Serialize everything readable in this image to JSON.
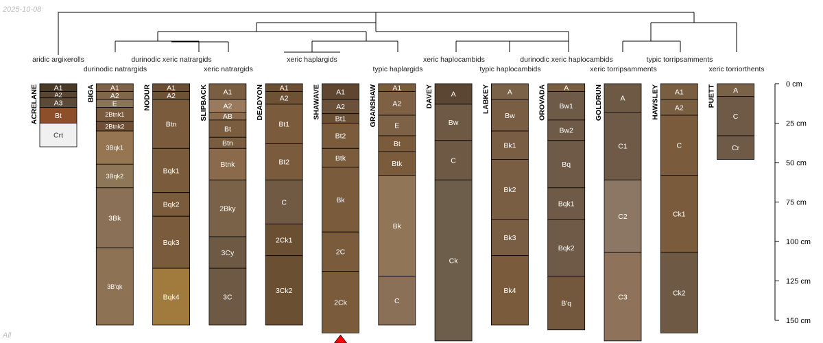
{
  "header": {
    "date": "2025-10-08"
  },
  "footer": {
    "label": "All"
  },
  "colors": {
    "line": "#000000",
    "marker": "#ff0000",
    "light_text": "#ffffff",
    "dark_text": "#333333"
  },
  "chart_data": {
    "type": "soil-profile-sketch",
    "depth_unit": "cm",
    "depth_axis": {
      "ticks": [
        0,
        25,
        50,
        75,
        100,
        125,
        150
      ],
      "labels": [
        "0 cm",
        "25 cm",
        "50 cm",
        "75 cm",
        "100 cm",
        "125 cm",
        "150 cm"
      ],
      "max_depth": 163
    },
    "dendrogram_leaf_labels": [
      "aridic argixerolls",
      "durinodic natrargids",
      "durinodic xeric natrargids",
      "xeric natrargids",
      "xeric haplargids",
      "typic haplargids",
      "xeric haplocambids",
      "typic haplocambids",
      "durinodic xeric haplocambids",
      "xeric torripsamments",
      "typic torripsamments",
      "xeric torriorthents"
    ],
    "profiles": [
      {
        "name": "ACRELANE",
        "horizons": [
          {
            "name": "A1",
            "top": 0,
            "bottom": 5,
            "color": "#4a3a28"
          },
          {
            "name": "A2",
            "top": 5,
            "bottom": 9,
            "color": "#584632"
          },
          {
            "name": "A3",
            "top": 9,
            "bottom": 15,
            "color": "#5c4a36"
          },
          {
            "name": "Bt",
            "top": 15,
            "bottom": 25,
            "color": "#8c4f2a"
          },
          {
            "name": "Crt",
            "top": 25,
            "bottom": 40,
            "color": "#f0f0f0"
          }
        ]
      },
      {
        "name": "BIGA",
        "horizons": [
          {
            "name": "A1",
            "top": 0,
            "bottom": 5,
            "color": "#7d6246"
          },
          {
            "name": "A2",
            "top": 5,
            "bottom": 10,
            "color": "#80664a"
          },
          {
            "name": "E",
            "top": 10,
            "bottom": 15,
            "color": "#8c7458"
          },
          {
            "name": "2Btnk1",
            "top": 15,
            "bottom": 24,
            "color": "#7a5b3e"
          },
          {
            "name": "2Btnk2",
            "top": 24,
            "bottom": 30,
            "color": "#6f5036"
          },
          {
            "name": "3Bqk1",
            "top": 30,
            "bottom": 51,
            "color": "#957552"
          },
          {
            "name": "3Bqk2",
            "top": 51,
            "bottom": 66,
            "color": "#8e7658"
          },
          {
            "name": "3Bk",
            "top": 66,
            "bottom": 104,
            "color": "#8a7056"
          },
          {
            "name": "3B'qk",
            "top": 104,
            "bottom": 153,
            "color": "#8d7254"
          }
        ]
      },
      {
        "name": "NODUR",
        "horizons": [
          {
            "name": "A1",
            "top": 0,
            "bottom": 5,
            "color": "#6b4f33"
          },
          {
            "name": "A2",
            "top": 5,
            "bottom": 10,
            "color": "#6e5236"
          },
          {
            "name": "Btn",
            "top": 10,
            "bottom": 41,
            "color": "#7a5c3c"
          },
          {
            "name": "Bqk1",
            "top": 41,
            "bottom": 69,
            "color": "#7a5c3c"
          },
          {
            "name": "Bqk2",
            "top": 69,
            "bottom": 84,
            "color": "#7a5c3c"
          },
          {
            "name": "Bqk3",
            "top": 84,
            "bottom": 117,
            "color": "#7a5c3c"
          },
          {
            "name": "Bqk4",
            "top": 117,
            "bottom": 153,
            "color": "#a17a3e"
          }
        ]
      },
      {
        "name": "SLIPBACK",
        "horizons": [
          {
            "name": "A1",
            "top": 0,
            "bottom": 10,
            "color": "#7a5e42"
          },
          {
            "name": "A2",
            "top": 10,
            "bottom": 18,
            "color": "#9a7a5c"
          },
          {
            "name": "AB",
            "top": 18,
            "bottom": 23,
            "color": "#8a6c50"
          },
          {
            "name": "Bt",
            "top": 23,
            "bottom": 34,
            "color": "#7a5c3e"
          },
          {
            "name": "Btn",
            "top": 34,
            "bottom": 41,
            "color": "#7a5c3e"
          },
          {
            "name": "Btnk",
            "top": 41,
            "bottom": 61,
            "color": "#8a6a4a"
          },
          {
            "name": "2Bky",
            "top": 61,
            "bottom": 97,
            "color": "#7a6248"
          },
          {
            "name": "3Cy",
            "top": 97,
            "bottom": 117,
            "color": "#6e5a44"
          },
          {
            "name": "3C",
            "top": 117,
            "bottom": 153,
            "color": "#6e5a44"
          }
        ]
      },
      {
        "name": "DEADYON",
        "horizons": [
          {
            "name": "A1",
            "top": 0,
            "bottom": 5,
            "color": "#6b4f33"
          },
          {
            "name": "A2",
            "top": 5,
            "bottom": 13,
            "color": "#6e5236"
          },
          {
            "name": "Bt1",
            "top": 13,
            "bottom": 38,
            "color": "#7a5c3c"
          },
          {
            "name": "Bt2",
            "top": 38,
            "bottom": 61,
            "color": "#7a5c3c"
          },
          {
            "name": "C",
            "top": 61,
            "bottom": 89,
            "color": "#705a44"
          },
          {
            "name": "2Ck1",
            "top": 89,
            "bottom": 109,
            "color": "#6b4f33"
          },
          {
            "name": "3Ck2",
            "top": 109,
            "bottom": 153,
            "color": "#6b4f33"
          }
        ]
      },
      {
        "name": "SHAWAVE",
        "horizons": [
          {
            "name": "A1",
            "top": 0,
            "bottom": 10,
            "color": "#5e4630"
          },
          {
            "name": "A2",
            "top": 10,
            "bottom": 19,
            "color": "#6b513a"
          },
          {
            "name": "Bt1",
            "top": 19,
            "bottom": 25,
            "color": "#6b4f33"
          },
          {
            "name": "Bt2",
            "top": 25,
            "bottom": 41,
            "color": "#7a5c3c"
          },
          {
            "name": "Btk",
            "top": 41,
            "bottom": 53,
            "color": "#7a5c3c"
          },
          {
            "name": "Bk",
            "top": 53,
            "bottom": 94,
            "color": "#7a5c3c"
          },
          {
            "name": "2C",
            "top": 94,
            "bottom": 119,
            "color": "#7a5c3c"
          },
          {
            "name": "2Ck",
            "top": 119,
            "bottom": 158,
            "color": "#7a5c3c"
          }
        ]
      },
      {
        "name": "GRANSHAW",
        "horizons": [
          {
            "name": "A1",
            "top": 0,
            "bottom": 5,
            "color": "#7a5c3c"
          },
          {
            "name": "A2",
            "top": 5,
            "bottom": 20,
            "color": "#7e6144"
          },
          {
            "name": "E",
            "top": 20,
            "bottom": 33,
            "color": "#7d6246"
          },
          {
            "name": "Bt",
            "top": 33,
            "bottom": 43,
            "color": "#7a5c3c"
          },
          {
            "name": "Btk",
            "top": 43,
            "bottom": 58,
            "color": "#7a5c3c"
          },
          {
            "name": "Bk",
            "top": 58,
            "bottom": 122,
            "color": "#907656"
          },
          {
            "name": "C",
            "top": 122,
            "bottom": 153,
            "color": "#8a7056"
          }
        ]
      },
      {
        "name": "DAVEY",
        "horizons": [
          {
            "name": "A",
            "top": 0,
            "bottom": 13,
            "color": "#5a4632"
          },
          {
            "name": "Bw",
            "top": 13,
            "bottom": 36,
            "color": "#6e5a44"
          },
          {
            "name": "C",
            "top": 36,
            "bottom": 61,
            "color": "#6e5a44"
          },
          {
            "name": "Ck",
            "top": 61,
            "bottom": 163,
            "color": "#6c5e4a"
          }
        ]
      },
      {
        "name": "LABKEY",
        "horizons": [
          {
            "name": "A",
            "top": 0,
            "bottom": 10,
            "color": "#7a6248"
          },
          {
            "name": "Bw",
            "top": 10,
            "bottom": 30,
            "color": "#7a5e44"
          },
          {
            "name": "Bk1",
            "top": 30,
            "bottom": 48,
            "color": "#7a5e44"
          },
          {
            "name": "Bk2",
            "top": 48,
            "bottom": 86,
            "color": "#7a5e44"
          },
          {
            "name": "Bk3",
            "top": 86,
            "bottom": 109,
            "color": "#7a5e44"
          },
          {
            "name": "Bk4",
            "top": 109,
            "bottom": 153,
            "color": "#7a5c3c"
          }
        ]
      },
      {
        "name": "OROVADA",
        "horizons": [
          {
            "name": "A",
            "top": 0,
            "bottom": 5,
            "color": "#7a5e42"
          },
          {
            "name": "Bw1",
            "top": 5,
            "bottom": 23,
            "color": "#6e5a46"
          },
          {
            "name": "Bw2",
            "top": 23,
            "bottom": 36,
            "color": "#6e5a46"
          },
          {
            "name": "Bq",
            "top": 36,
            "bottom": 66,
            "color": "#6e5a46"
          },
          {
            "name": "Bqk1",
            "top": 66,
            "bottom": 86,
            "color": "#6e5a46"
          },
          {
            "name": "Bqk2",
            "top": 86,
            "bottom": 122,
            "color": "#6e5a46"
          },
          {
            "name": "B'q",
            "top": 122,
            "bottom": 156,
            "color": "#74583e"
          }
        ]
      },
      {
        "name": "GOLDRUN",
        "horizons": [
          {
            "name": "A",
            "top": 0,
            "bottom": 18,
            "color": "#6e5a44"
          },
          {
            "name": "C1",
            "top": 18,
            "bottom": 61,
            "color": "#6e5a46"
          },
          {
            "name": "C2",
            "top": 61,
            "bottom": 107,
            "color": "#8c7664"
          },
          {
            "name": "C3",
            "top": 107,
            "bottom": 163,
            "color": "#8e735a"
          }
        ]
      },
      {
        "name": "HAWSLEY",
        "horizons": [
          {
            "name": "A1",
            "top": 0,
            "bottom": 10,
            "color": "#7a5e42"
          },
          {
            "name": "A2",
            "top": 10,
            "bottom": 20,
            "color": "#7a5e42"
          },
          {
            "name": "C",
            "top": 20,
            "bottom": 58,
            "color": "#7a5c3c"
          },
          {
            "name": "Ck1",
            "top": 58,
            "bottom": 107,
            "color": "#7a5c3c"
          },
          {
            "name": "Ck2",
            "top": 107,
            "bottom": 158,
            "color": "#6e5a44"
          }
        ]
      },
      {
        "name": "PUETT",
        "horizons": [
          {
            "name": "A",
            "top": 0,
            "bottom": 8,
            "color": "#7a6248"
          },
          {
            "name": "C",
            "top": 8,
            "bottom": 33,
            "color": "#6e5a46"
          },
          {
            "name": "Cr",
            "top": 33,
            "bottom": 48,
            "color": "#6e5a46"
          }
        ]
      }
    ]
  }
}
